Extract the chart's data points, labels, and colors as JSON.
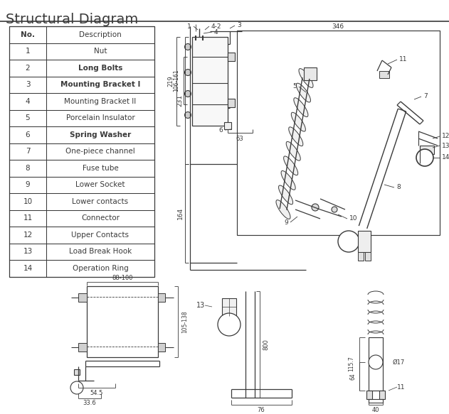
{
  "title": "Structural Diagram",
  "bg": "#ffffff",
  "lc": "#3a3a3a",
  "table_nos": [
    "No.",
    "1",
    "2",
    "3",
    "4",
    "5",
    "6",
    "7",
    "8",
    "9",
    "10",
    "11",
    "12",
    "13",
    "14"
  ],
  "table_desc": [
    "Description",
    "Nut",
    "Long Bolts",
    "Mounting Bracket I",
    "Mounting Bracket II",
    "Porcelain Insulator",
    "Spring Washer",
    "One-piece channel",
    "Fuse tube",
    "Lower Socket",
    "Lower contacts",
    "Connector",
    "Upper Contacts",
    "Load Break Hook",
    "Operation Ring"
  ],
  "bold_desc_idx": [
    2,
    3,
    6
  ],
  "dim_346": "346",
  "dim_219": "219",
  "dim_106_161": "106-161",
  "dim_63": "63",
  "dim_231": "231",
  "dim_164": "164",
  "dim_88_100": "88-100",
  "dim_105_138": "105-138",
  "dim_54_5": "54.5",
  "dim_33_6": "33.6",
  "dim_800": "800",
  "dim_76": "76",
  "dim_115_7": "115.7",
  "dim_64": "64",
  "dim_40": "40",
  "dim_phi17": "Ø17"
}
